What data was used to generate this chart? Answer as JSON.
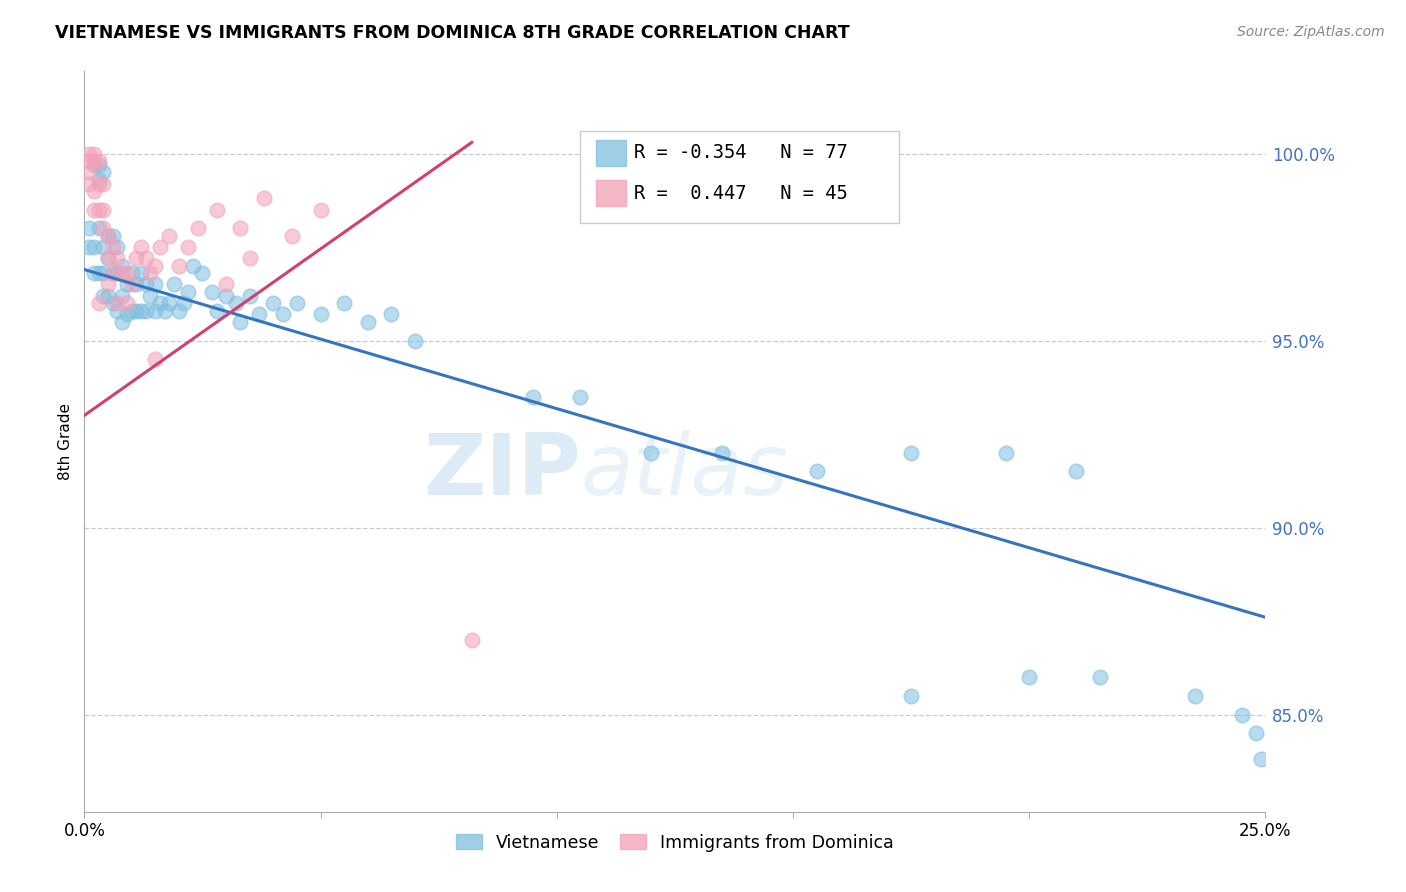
{
  "title": "VIETNAMESE VS IMMIGRANTS FROM DOMINICA 8TH GRADE CORRELATION CHART",
  "source": "Source: ZipAtlas.com",
  "ylabel": "8th Grade",
  "ytick_labels": [
    "100.0%",
    "95.0%",
    "90.0%",
    "85.0%"
  ],
  "ytick_values": [
    1.0,
    0.95,
    0.9,
    0.85
  ],
  "xmin": 0.0,
  "xmax": 0.25,
  "ymin": 0.824,
  "ymax": 1.022,
  "legend_blue_label": "Vietnamese",
  "legend_pink_label": "Immigrants from Dominica",
  "blue_R": "-0.354",
  "blue_N": "77",
  "pink_R": "0.447",
  "pink_N": "45",
  "blue_color": "#7fbfdf",
  "pink_color": "#f4a0b8",
  "blue_line_color": "#3575c0",
  "pink_line_color": "#d04070",
  "watermark_zip": "ZIP",
  "watermark_atlas": "atlas",
  "blue_line_x": [
    0.0,
    0.25
  ],
  "blue_line_y": [
    0.969,
    0.876
  ],
  "pink_line_x": [
    0.0,
    0.082
  ],
  "pink_line_y": [
    0.93,
    1.003
  ],
  "blue_points_x": [
    0.001,
    0.001,
    0.002,
    0.002,
    0.002,
    0.003,
    0.003,
    0.003,
    0.003,
    0.004,
    0.004,
    0.004,
    0.004,
    0.005,
    0.005,
    0.005,
    0.006,
    0.006,
    0.006,
    0.007,
    0.007,
    0.007,
    0.008,
    0.008,
    0.008,
    0.009,
    0.009,
    0.01,
    0.01,
    0.011,
    0.011,
    0.012,
    0.012,
    0.013,
    0.013,
    0.014,
    0.015,
    0.015,
    0.016,
    0.017,
    0.018,
    0.019,
    0.02,
    0.021,
    0.022,
    0.023,
    0.025,
    0.027,
    0.028,
    0.03,
    0.032,
    0.033,
    0.035,
    0.037,
    0.04,
    0.042,
    0.045,
    0.05,
    0.055,
    0.06,
    0.065,
    0.07,
    0.095,
    0.105,
    0.12,
    0.135,
    0.155,
    0.175,
    0.195,
    0.21,
    0.175,
    0.2,
    0.215,
    0.235,
    0.245,
    0.248,
    0.249
  ],
  "blue_points_y": [
    0.98,
    0.975,
    0.997,
    0.975,
    0.968,
    0.997,
    0.993,
    0.98,
    0.968,
    0.975,
    0.968,
    0.962,
    0.995,
    0.978,
    0.972,
    0.962,
    0.978,
    0.968,
    0.96,
    0.975,
    0.968,
    0.958,
    0.97,
    0.962,
    0.955,
    0.965,
    0.957,
    0.968,
    0.958,
    0.965,
    0.958,
    0.968,
    0.958,
    0.965,
    0.958,
    0.962,
    0.965,
    0.958,
    0.96,
    0.958,
    0.96,
    0.965,
    0.958,
    0.96,
    0.963,
    0.97,
    0.968,
    0.963,
    0.958,
    0.962,
    0.96,
    0.955,
    0.962,
    0.957,
    0.96,
    0.957,
    0.96,
    0.957,
    0.96,
    0.955,
    0.957,
    0.95,
    0.935,
    0.935,
    0.92,
    0.92,
    0.915,
    0.92,
    0.92,
    0.915,
    0.855,
    0.86,
    0.86,
    0.855,
    0.85,
    0.845,
    0.838
  ],
  "pink_points_x": [
    0.001,
    0.001,
    0.001,
    0.001,
    0.002,
    0.002,
    0.002,
    0.002,
    0.003,
    0.003,
    0.003,
    0.004,
    0.004,
    0.004,
    0.005,
    0.005,
    0.005,
    0.006,
    0.006,
    0.007,
    0.007,
    0.008,
    0.009,
    0.009,
    0.01,
    0.011,
    0.012,
    0.013,
    0.014,
    0.015,
    0.016,
    0.018,
    0.02,
    0.022,
    0.024,
    0.028,
    0.033,
    0.038,
    0.044,
    0.05,
    0.003,
    0.03,
    0.035,
    0.015,
    0.082
  ],
  "pink_points_y": [
    1.0,
    0.998,
    0.995,
    0.992,
    1.0,
    0.998,
    0.99,
    0.985,
    0.998,
    0.992,
    0.985,
    0.992,
    0.985,
    0.98,
    0.978,
    0.972,
    0.965,
    0.975,
    0.968,
    0.972,
    0.96,
    0.968,
    0.968,
    0.96,
    0.965,
    0.972,
    0.975,
    0.972,
    0.968,
    0.97,
    0.975,
    0.978,
    0.97,
    0.975,
    0.98,
    0.985,
    0.98,
    0.988,
    0.978,
    0.985,
    0.96,
    0.965,
    0.972,
    0.945,
    0.87
  ]
}
